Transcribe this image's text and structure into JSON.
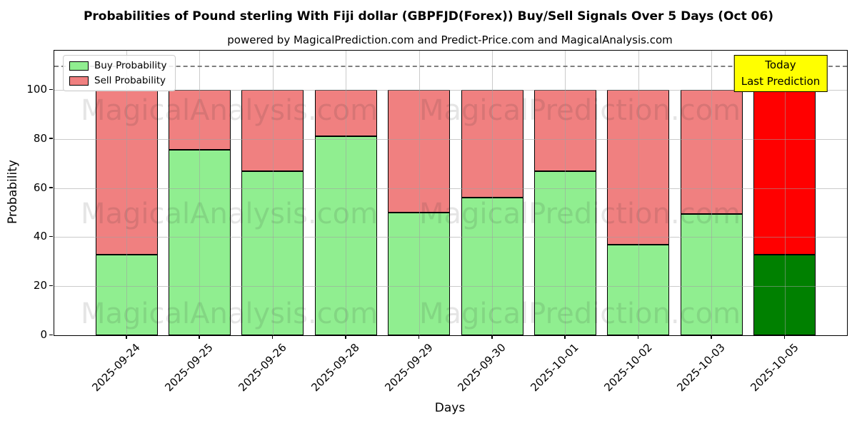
{
  "title": "Probabilities of Pound sterling With Fiji dollar (GBPFJD(Forex)) Buy/Sell Signals Over 5 Days (Oct 06)",
  "subtitle": "powered by MagicalPrediction.com and Predict-Price.com and MagicalAnalysis.com",
  "legend": {
    "items": [
      {
        "label": "Buy Probability",
        "color": "#90EE90"
      },
      {
        "label": "Sell Probability",
        "color": "#F08080"
      }
    ]
  },
  "annotation": {
    "line1": "Today",
    "line2": "Last Prediction",
    "bg_color": "#FFFF00"
  },
  "watermarks": {
    "left": "MagicalAnalysis.com",
    "right": "MagicalPrediction.com"
  },
  "chart_data": {
    "type": "bar",
    "stacked": true,
    "title": "Probabilities of Pound sterling With Fiji dollar (GBPFJD(Forex)) Buy/Sell Signals Over 5 Days (Oct 06)",
    "xlabel": "Days",
    "ylabel": "Probability",
    "ylim": [
      0,
      116
    ],
    "yticks": [
      0,
      20,
      40,
      60,
      80,
      100
    ],
    "grid": true,
    "legend_position": "upper left",
    "dashed_threshold_y": 110,
    "categories": [
      "2025-09-24",
      "2025-09-25",
      "2025-09-26",
      "2025-09-28",
      "2025-09-29",
      "2025-09-30",
      "2025-10-01",
      "2025-10-02",
      "2025-10-03",
      "2025-10-05"
    ],
    "series": [
      {
        "name": "Buy Probability",
        "color": "#90EE90",
        "values": [
          33,
          75.5,
          67,
          81,
          50,
          56,
          67,
          37,
          49.5,
          33
        ]
      },
      {
        "name": "Sell Probability",
        "color": "#F08080",
        "values": [
          67,
          24.5,
          33,
          19,
          50,
          44,
          33,
          63,
          50.5,
          67
        ]
      }
    ],
    "today_bar_index": 9,
    "today_bar_colors": {
      "buy": "#008000",
      "sell": "#FF0000"
    }
  }
}
